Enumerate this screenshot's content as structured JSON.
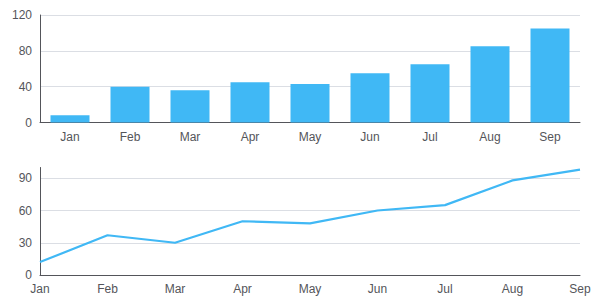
{
  "chart_data": [
    {
      "type": "bar",
      "categories": [
        "Jan",
        "Feb",
        "Mar",
        "Apr",
        "May",
        "Jun",
        "Jul",
        "Aug",
        "Sep"
      ],
      "values": [
        8,
        40,
        36,
        45,
        43,
        55,
        65,
        85,
        105
      ],
      "color": "#40b8f5",
      "ylim": [
        0,
        120
      ],
      "yticks": [
        0,
        40,
        80,
        120
      ],
      "grid": true
    },
    {
      "type": "line",
      "categories": [
        "Jan",
        "Feb",
        "Mar",
        "Apr",
        "May",
        "Jun",
        "Jul",
        "Aug",
        "Sep"
      ],
      "values": [
        12,
        37,
        30,
        50,
        48,
        60,
        65,
        88,
        98
      ],
      "color": "#40b8f5",
      "ylim": [
        0,
        100
      ],
      "yticks": [
        0,
        30,
        60,
        90
      ],
      "grid": true
    }
  ]
}
